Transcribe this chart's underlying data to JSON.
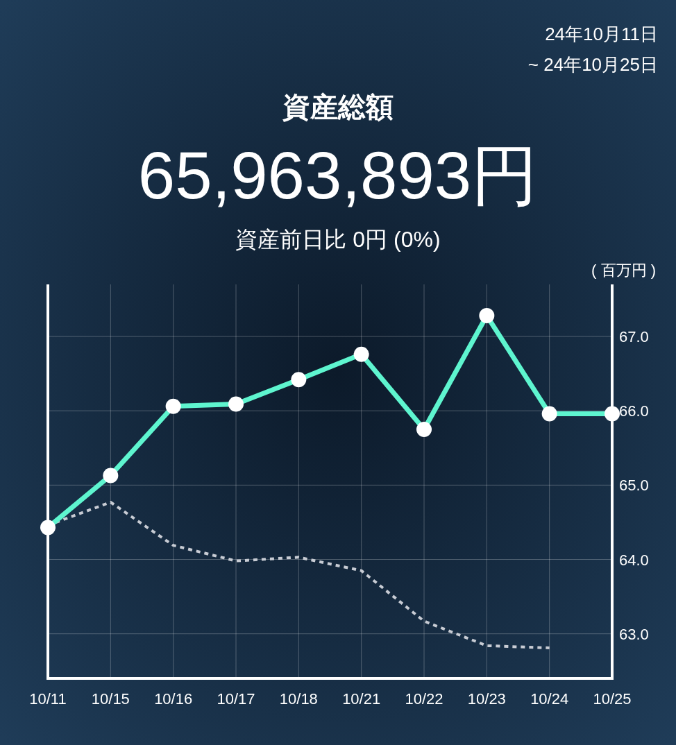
{
  "chart_data": {
    "type": "line",
    "title": "資産総額",
    "ylabel": "( 百万円 )",
    "annotations": [
      "24年10月11日",
      "~ 24年10月25日",
      "65,963,893円",
      "資産前日比 0円 (0%)"
    ],
    "categories": [
      "10/11",
      "10/15",
      "10/16",
      "10/17",
      "10/18",
      "10/21",
      "10/22",
      "10/23",
      "10/24",
      "10/25"
    ],
    "series": [
      {
        "color": "#5ef5cf",
        "marker": "circle",
        "line_style": "solid",
        "values": [
          64.43,
          65.13,
          66.06,
          66.09,
          66.42,
          66.76,
          65.75,
          67.28,
          65.96,
          65.96
        ]
      },
      {
        "color": "#c8ccd4",
        "marker": "none",
        "line_style": "dotted",
        "values": [
          64.46,
          64.77,
          64.19,
          63.98,
          64.03,
          63.85,
          63.17,
          62.84,
          62.81,
          null
        ]
      }
    ],
    "ylim": [
      62.4,
      67.7
    ],
    "yticks": [
      {
        "value": 63,
        "label": "63.0"
      },
      {
        "value": 64,
        "label": "64.0"
      },
      {
        "value": 65,
        "label": "65.0"
      },
      {
        "value": 66,
        "label": "66.0"
      },
      {
        "value": 67,
        "label": "67.0"
      }
    ],
    "grid": true
  }
}
